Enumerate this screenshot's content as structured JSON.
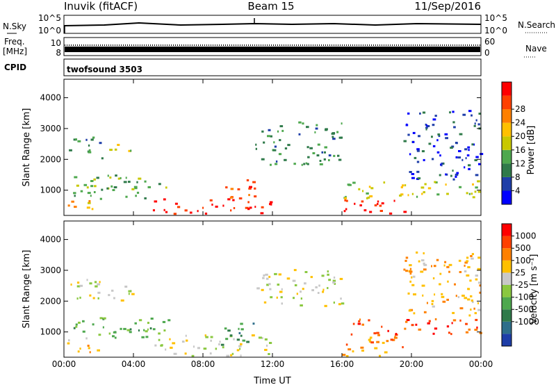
{
  "header": {
    "station": "Inuvik (fitACF)",
    "beam": "Beam 15",
    "date": "11/Sep/2016"
  },
  "top_panels": {
    "nsky_label": "N.Sky",
    "nsky_ticks": [
      "10^5",
      "10^0"
    ],
    "nsearch_label": "N.Search",
    "nsearch_ticks": [
      "10^5",
      "10^0"
    ],
    "freq_label": "Freq.",
    "freq_unit": "[MHz]",
    "freq_ticks": [
      "10",
      "8"
    ],
    "nave_label": "Nave",
    "nave_ticks": [
      "60",
      "0"
    ],
    "cpid_label": "CPID",
    "cpid_value": "twofsound 3503"
  },
  "chart_data": [
    {
      "type": "heatmap",
      "name": "power",
      "xlabel": "Time UT",
      "ylabel": "Slant Range [km]",
      "x_ticks": [
        "00:00",
        "04:00",
        "08:00",
        "12:00",
        "16:00",
        "20:00",
        "00:00"
      ],
      "y_ticks": [
        1000,
        2000,
        3000,
        4000
      ],
      "ylim": [
        180,
        4600
      ],
      "colorbar": {
        "label": "Power [dB]",
        "ticks": [
          "4",
          "8",
          "12",
          "16",
          "20",
          "24",
          "28"
        ],
        "colors": [
          "#0000ff",
          "#1e3ea8",
          "#2f7a4a",
          "#4ea84e",
          "#c8c800",
          "#ffc000",
          "#ff8000",
          "#ff4000",
          "#ff0000"
        ]
      },
      "regions": [
        {
          "t": [
            0.0,
            2.0
          ],
          "r": [
            300,
            700
          ],
          "level": 5
        },
        {
          "t": [
            0.0,
            6.0
          ],
          "r": [
            700,
            1500
          ],
          "level": 3
        },
        {
          "t": [
            0.2,
            2.2
          ],
          "r": [
            2000,
            2700
          ],
          "level": 2
        },
        {
          "t": [
            2.5,
            4.2
          ],
          "r": [
            2200,
            2500
          ],
          "level": 4
        },
        {
          "t": [
            5.0,
            12.0
          ],
          "r": [
            200,
            700
          ],
          "level": 8
        },
        {
          "t": [
            9.0,
            11.0
          ],
          "r": [
            700,
            1400
          ],
          "level": 7
        },
        {
          "t": [
            11.0,
            16.0
          ],
          "r": [
            1800,
            3200
          ],
          "level": 2
        },
        {
          "t": [
            16.0,
            20.0
          ],
          "r": [
            200,
            700
          ],
          "level": 8
        },
        {
          "t": [
            16.0,
            24.0
          ],
          "r": [
            700,
            1300
          ],
          "level": 4
        },
        {
          "t": [
            19.5,
            24.0
          ],
          "r": [
            1300,
            3600
          ],
          "level": 1
        }
      ]
    },
    {
      "type": "heatmap",
      "name": "velocity",
      "xlabel": "Time UT",
      "ylabel": "Slant Range [km]",
      "x_ticks": [
        "00:00",
        "04:00",
        "08:00",
        "12:00",
        "16:00",
        "20:00",
        "00:00"
      ],
      "y_ticks": [
        1000,
        2000,
        3000,
        4000
      ],
      "ylim": [
        180,
        4600
      ],
      "colorbar": {
        "label": "Velocity [m s⁻¹]",
        "ticks": [
          "1000",
          "500",
          "100",
          "25",
          "-25",
          "-100",
          "-500",
          "-1000"
        ],
        "colors": [
          "#1e3ea8",
          "#2e6e8a",
          "#2f7a4a",
          "#4ea84e",
          "#8ac840",
          "#c8c8c8",
          "#ffc000",
          "#ff8000",
          "#ff4000",
          "#ff0000"
        ]
      },
      "regions": [
        {
          "t": [
            0.0,
            2.0
          ],
          "r": [
            300,
            800
          ],
          "level": 6
        },
        {
          "t": [
            0.0,
            6.0
          ],
          "r": [
            800,
            1500
          ],
          "level": 3
        },
        {
          "t": [
            0.2,
            4.2
          ],
          "r": [
            2000,
            2700
          ],
          "level": 5
        },
        {
          "t": [
            5.0,
            12.0
          ],
          "r": [
            200,
            900
          ],
          "level": 5
        },
        {
          "t": [
            9.0,
            11.0
          ],
          "r": [
            500,
            1300
          ],
          "level": 2
        },
        {
          "t": [
            11.0,
            16.0
          ],
          "r": [
            1800,
            3000
          ],
          "level": 5
        },
        {
          "t": [
            16.0,
            20.0
          ],
          "r": [
            200,
            900
          ],
          "level": 7
        },
        {
          "t": [
            16.0,
            24.0
          ],
          "r": [
            900,
            1400
          ],
          "level": 8
        },
        {
          "t": [
            19.5,
            24.0
          ],
          "r": [
            1400,
            3600
          ],
          "level": 6
        }
      ]
    }
  ]
}
